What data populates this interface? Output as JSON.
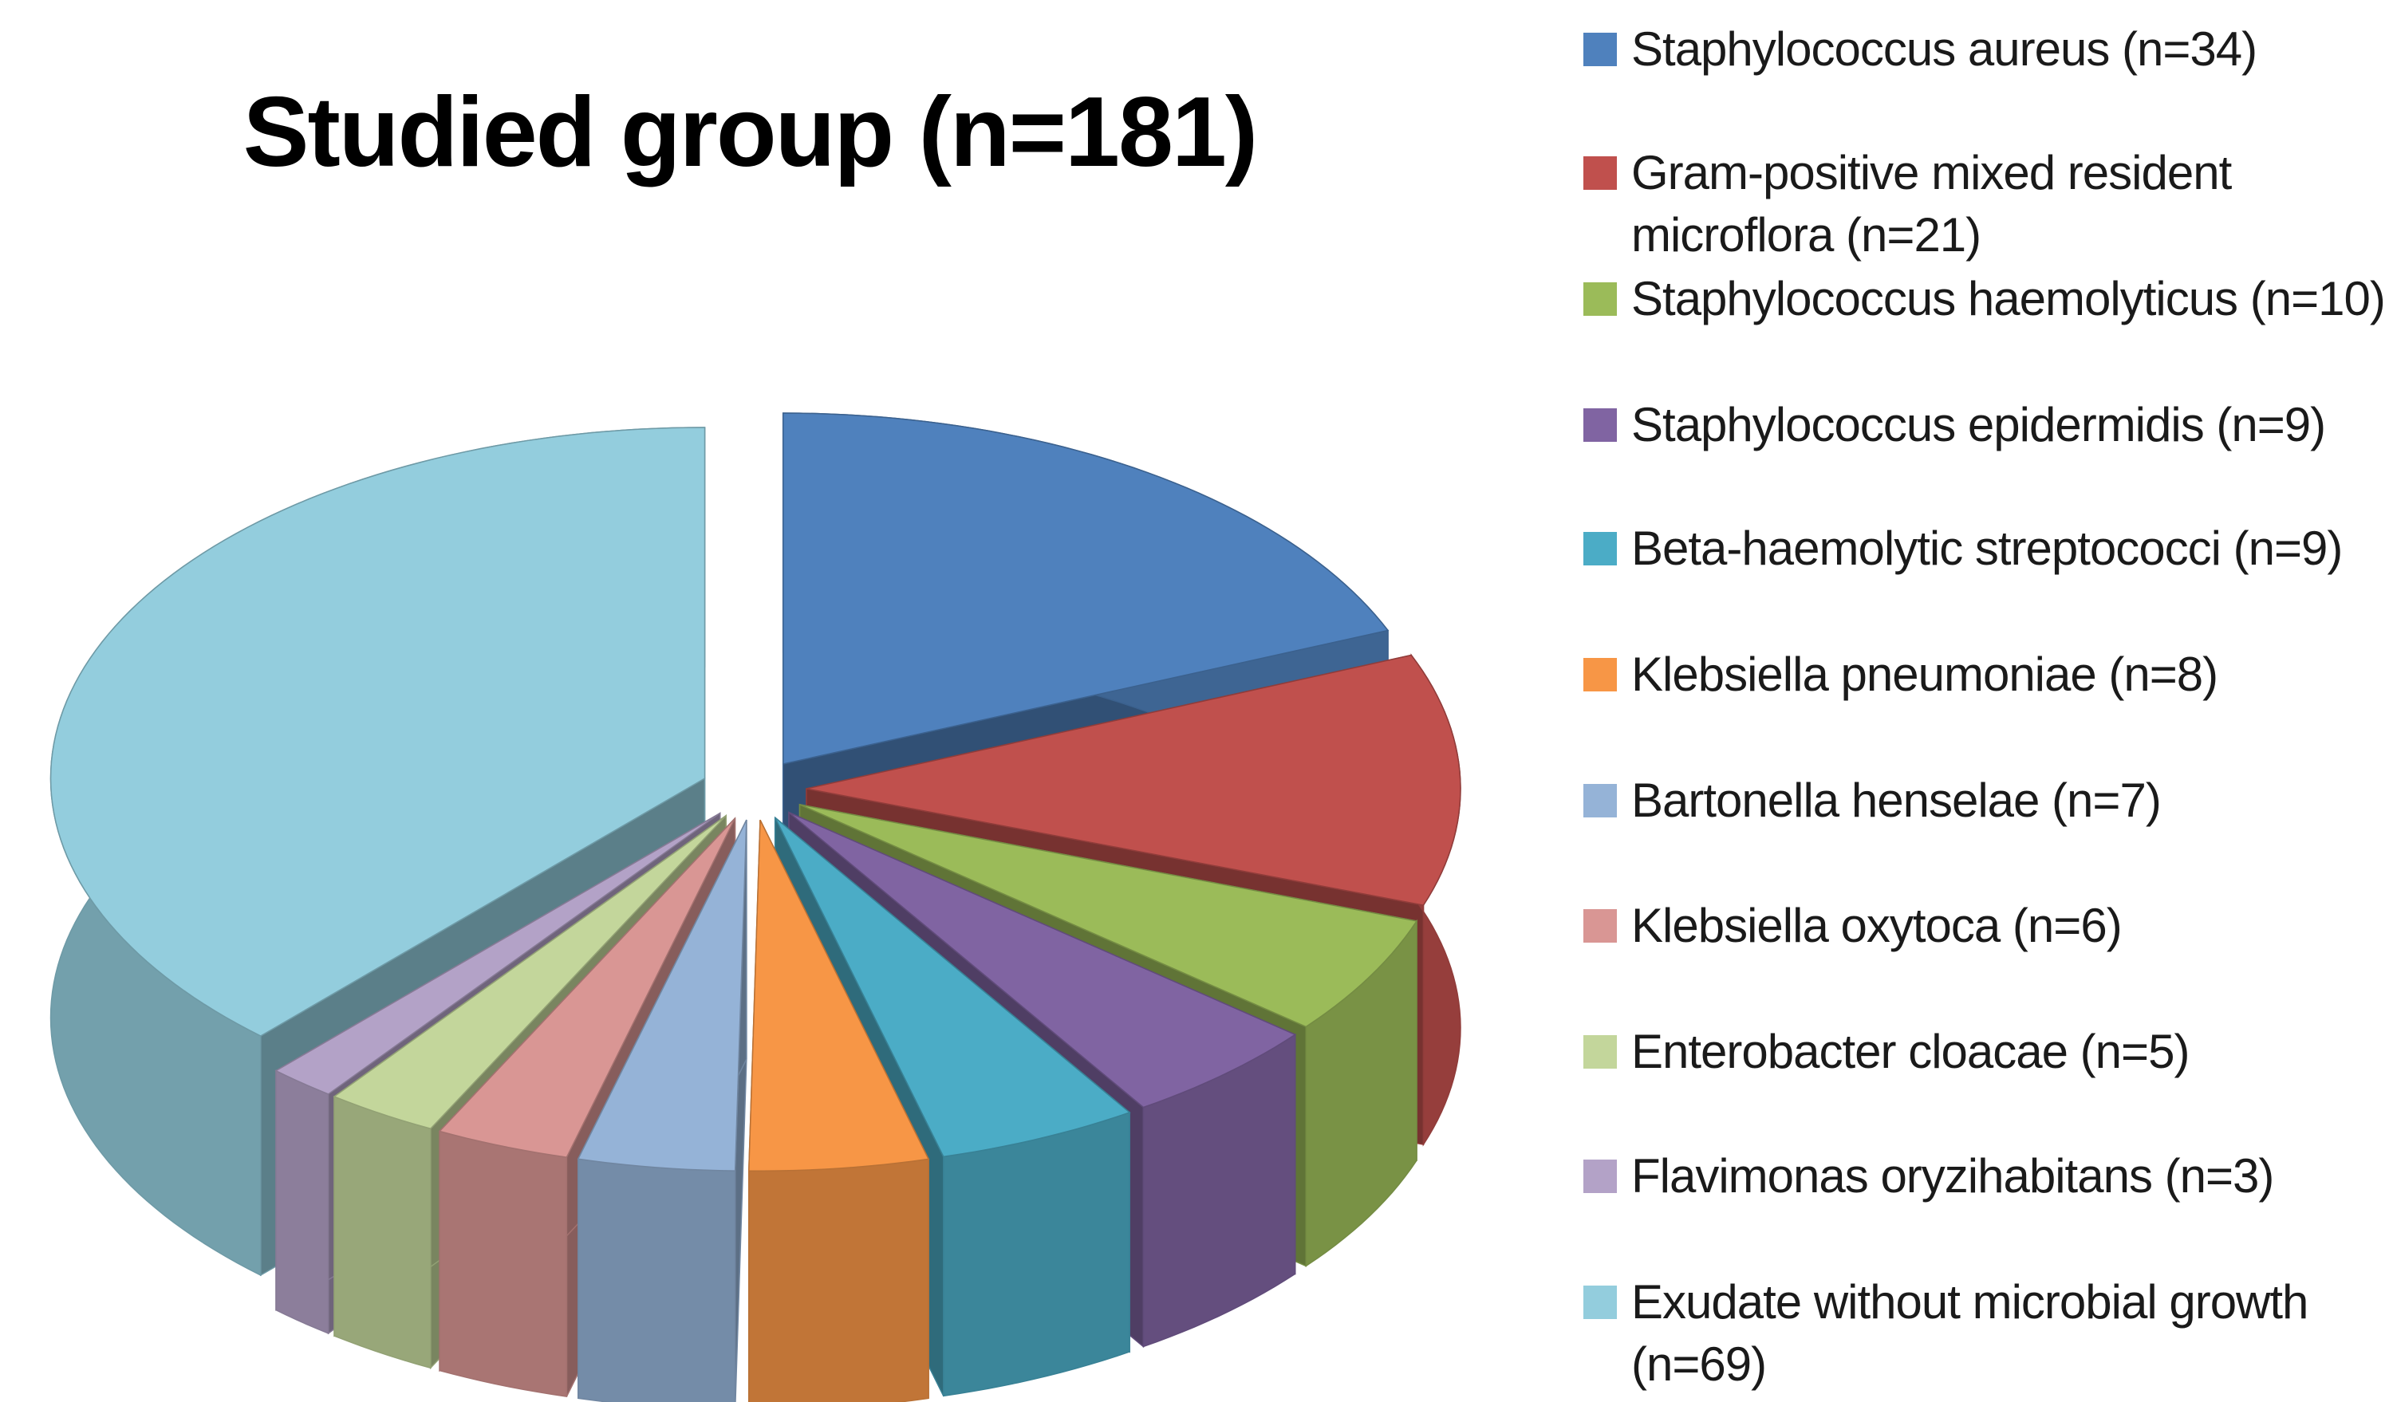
{
  "chart_data": {
    "type": "pie",
    "style": "3d-exploded",
    "title": "Studied group (n=181)",
    "legend_position": "right",
    "start": "12 o'clock, clockwise",
    "slices": [
      {
        "label": "Staphylococcus aureus (n=34)",
        "value": 34,
        "color": "#4F81BD"
      },
      {
        "label": "Gram-positive mixed resident microflora (n=21)",
        "value": 21,
        "color": "#C0504D"
      },
      {
        "label": "Staphylococcus haemolyticus (n=10)",
        "value": 10,
        "color": "#9BBB59"
      },
      {
        "label": "Staphylococcus epidermidis (n=9)",
        "value": 9,
        "color": "#8064A2"
      },
      {
        "label": "Beta-haemolytic streptococci (n=9)",
        "value": 9,
        "color": "#4BACC6"
      },
      {
        "label": "Klebsiella pneumoniae (n=8)",
        "value": 8,
        "color": "#F79646"
      },
      {
        "label": "Bartonella henselae (n=7)",
        "value": 7,
        "color": "#95B3D7"
      },
      {
        "label": "Klebsiella oxytoca (n=6)",
        "value": 6,
        "color": "#D99694"
      },
      {
        "label": "Enterobacter cloacae (n=5)",
        "value": 5,
        "color": "#C3D69B"
      },
      {
        "label": "Flavimonas oryzihabitans (n=3)",
        "value": 3,
        "color": "#B3A2C7"
      },
      {
        "label": "Exudate without microbial growth (n=69)",
        "value": 69,
        "color": "#93CDDD"
      }
    ]
  }
}
